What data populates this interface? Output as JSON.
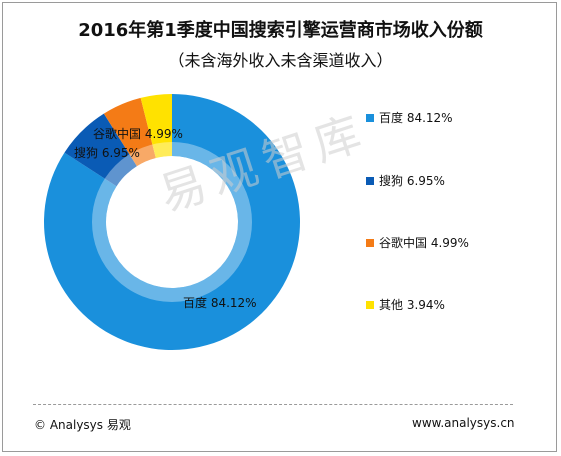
{
  "chart_data": {
    "type": "pie",
    "title": "2016年第1季度中国搜索引擎运营商市场收入份额",
    "subtitle": "（未含海外收入未含渠道收入）",
    "categories": [
      "百度",
      "搜狗",
      "谷歌中国",
      "其他"
    ],
    "values": [
      84.12,
      6.95,
      4.99,
      3.94
    ],
    "value_labels": [
      "84.12%",
      "6.95%",
      "4.99%",
      "3.94%"
    ],
    "colors": [
      "#1a90dc",
      "#0a5bb5",
      "#f47b16",
      "#ffe200"
    ],
    "legend_position": "right",
    "donut": true
  },
  "watermark": "易观智库",
  "footer": {
    "left": "© Analysys 易观",
    "right": "www.analysys.cn"
  }
}
